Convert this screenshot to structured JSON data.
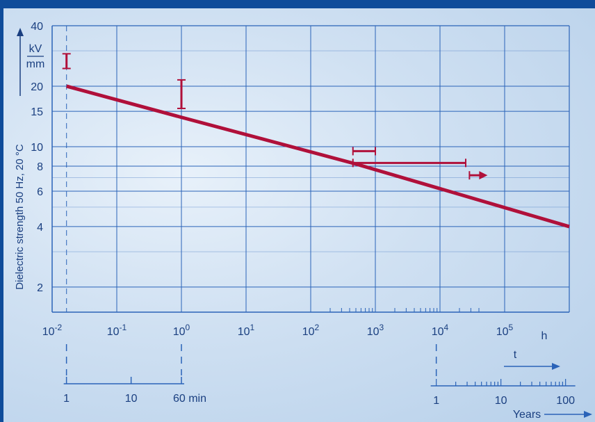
{
  "chart_data": {
    "type": "line",
    "title": "",
    "ylabel": "Dielectric strength 50 Hz, 20 °C",
    "y_unit_num": "kV",
    "y_unit_den": "mm",
    "x_unit": "h",
    "x_scale": "log",
    "y_scale": "log",
    "xlim": [
      0.01,
      1000000
    ],
    "ylim": [
      1.5,
      40
    ],
    "x_ticks": [
      {
        "base": "10",
        "exp": "-2",
        "value": 0.01
      },
      {
        "base": "10",
        "exp": "-1",
        "value": 0.1
      },
      {
        "base": "10",
        "exp": "0",
        "value": 1
      },
      {
        "base": "10",
        "exp": "1",
        "value": 10
      },
      {
        "base": "10",
        "exp": "2",
        "value": 100
      },
      {
        "base": "10",
        "exp": "3",
        "value": 1000
      },
      {
        "base": "10",
        "exp": "4",
        "value": 10000
      },
      {
        "base": "10",
        "exp": "5",
        "value": 100000
      }
    ],
    "y_ticks": [
      {
        "label": "40",
        "value": 40
      },
      {
        "label": "20",
        "value": 20
      },
      {
        "label": "15",
        "value": 15
      },
      {
        "label": "10",
        "value": 10
      },
      {
        "label": "8",
        "value": 8
      },
      {
        "label": "6",
        "value": 6
      },
      {
        "label": "4",
        "value": 4
      },
      {
        "label": "2",
        "value": 2
      }
    ],
    "series": [
      {
        "x": [
          0.0167,
          1,
          500,
          1000000
        ],
        "y": [
          20,
          14,
          8.2,
          4.0
        ]
      }
    ],
    "error_bars_vertical": [
      {
        "x": 0.0167,
        "ymin": 24.5,
        "ymax": 29
      },
      {
        "x": 1,
        "ymin": 15.5,
        "ymax": 21.5
      }
    ],
    "range_bars_horizontal": [
      {
        "y": 9.5,
        "xmin": 450,
        "xmax": 1000
      },
      {
        "y": 8.3,
        "xmin": 450,
        "xmax": 25000
      }
    ],
    "arrow_marker": {
      "x": 30000,
      "y": 7.2
    },
    "t_label": "t",
    "minutes_axis": {
      "ticks": [
        "1",
        "10",
        "60 min"
      ],
      "values": [
        1,
        10,
        60
      ]
    },
    "years_axis": {
      "ticks": [
        "1",
        "10",
        "100"
      ],
      "values": [
        1,
        10,
        100
      ],
      "label": "Years"
    },
    "colors": {
      "line": "#b0103a",
      "grid": "#2a63b8",
      "text": "#1a3f80",
      "frame": "#0f4c9a"
    }
  }
}
